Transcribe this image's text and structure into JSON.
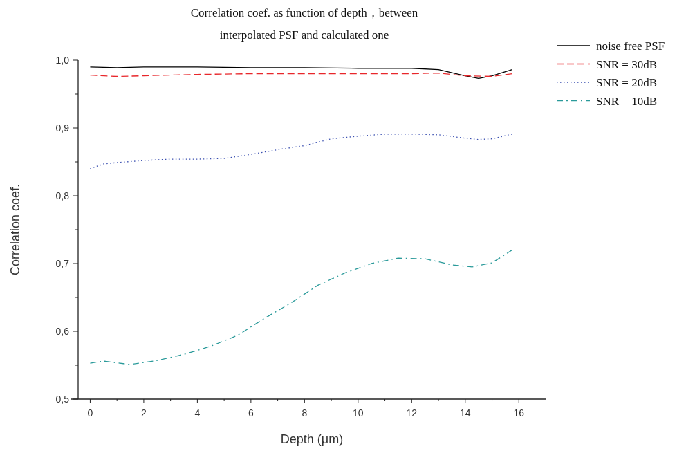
{
  "chart_data": {
    "type": "line",
    "title": "Correlation coef. as function of depth，between\ninterpolated PSF and calculated one",
    "xlabel": "Depth (μm)",
    "ylabel": "Correlation coef.",
    "xlim": [
      -0.45,
      17
    ],
    "ylim": [
      0.5,
      1.0
    ],
    "xticks": [
      0,
      {
        "value": 1,
        "label": null
      },
      2,
      {
        "value": 3,
        "label": null
      },
      4,
      {
        "value": 5,
        "label": null
      },
      6,
      {
        "value": 7,
        "label": null
      },
      8,
      {
        "value": 9,
        "label": null
      },
      10,
      {
        "value": 11,
        "label": null
      },
      12,
      {
        "value": 13,
        "label": null
      },
      14,
      {
        "value": 15,
        "label": null
      },
      16
    ],
    "yticks": [
      {
        "value": 0.5,
        "label": "0,5"
      },
      {
        "value": 0.55,
        "label": null
      },
      {
        "value": 0.6,
        "label": "0,6"
      },
      {
        "value": 0.65,
        "label": null
      },
      {
        "value": 0.7,
        "label": "0,7"
      },
      {
        "value": 0.75,
        "label": null
      },
      {
        "value": 0.8,
        "label": "0,8"
      },
      {
        "value": 0.85,
        "label": null
      },
      {
        "value": 0.9,
        "label": "0,9"
      },
      {
        "value": 0.95,
        "label": null
      },
      {
        "value": 1.0,
        "label": "1,0"
      }
    ],
    "grid": false,
    "legend": "top right",
    "marker": "none",
    "series": [
      {
        "name": "noise free PSF",
        "color": "#000000",
        "line_style": "solid",
        "x": [
          0,
          1,
          2,
          4,
          6,
          8,
          10,
          12,
          13,
          14,
          14.5,
          15,
          15.75
        ],
        "values": [
          0.99,
          0.989,
          0.99,
          0.99,
          0.989,
          0.989,
          0.988,
          0.988,
          0.986,
          0.977,
          0.973,
          0.977,
          0.986
        ]
      },
      {
        "name": "SNR = 30dB",
        "color": "#e8272b",
        "line_style": "dashed",
        "x": [
          0,
          1,
          2,
          4,
          6,
          8,
          10,
          12,
          13,
          14,
          15,
          15.75
        ],
        "values": [
          0.978,
          0.976,
          0.977,
          0.979,
          0.98,
          0.98,
          0.98,
          0.98,
          0.981,
          0.977,
          0.976,
          0.98
        ]
      },
      {
        "name": "SNR = 20dB",
        "color": "#3a4fb0",
        "line_style": "dotted",
        "x": [
          0,
          0.5,
          1,
          2,
          3,
          4,
          5,
          6,
          7,
          8,
          9,
          10,
          11,
          12,
          13,
          14,
          14.5,
          15,
          15.75
        ],
        "values": [
          0.84,
          0.847,
          0.849,
          0.852,
          0.854,
          0.854,
          0.855,
          0.861,
          0.868,
          0.874,
          0.884,
          0.888,
          0.891,
          0.891,
          0.89,
          0.885,
          0.883,
          0.884,
          0.891
        ]
      },
      {
        "name": "SNR = 10dB",
        "color": "#2a9a9a",
        "line_style": "dashdot",
        "x": [
          0,
          0.5,
          1.5,
          2.5,
          3.5,
          4.5,
          5.5,
          6.5,
          7.5,
          8.5,
          9.5,
          10.5,
          11.5,
          12.5,
          13.5,
          14.25,
          15,
          15.75
        ],
        "values": [
          0.553,
          0.556,
          0.551,
          0.557,
          0.566,
          0.578,
          0.594,
          0.619,
          0.642,
          0.668,
          0.686,
          0.7,
          0.708,
          0.707,
          0.698,
          0.695,
          0.701,
          0.72
        ]
      }
    ]
  }
}
